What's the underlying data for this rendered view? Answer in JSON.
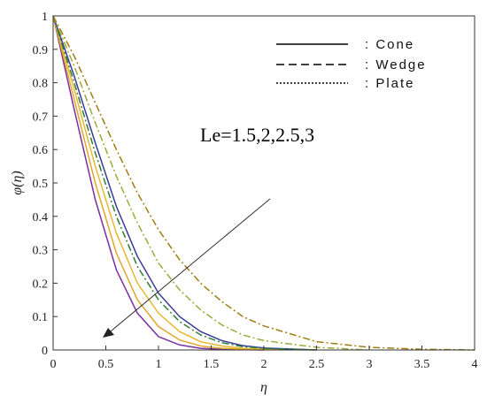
{
  "chart_data": {
    "type": "line",
    "xlabel": "η",
    "ylabel": "φ(η)",
    "xlim": [
      0,
      4
    ],
    "ylim": [
      0,
      1
    ],
    "x_ticks": [
      "0",
      "0.5",
      "1",
      "1.5",
      "2",
      "2.5",
      "3",
      "3.5",
      "4"
    ],
    "y_ticks": [
      "0",
      "0.1",
      "0.2",
      "0.3",
      "0.4",
      "0.5",
      "0.6",
      "0.7",
      "0.8",
      "0.9",
      "1"
    ],
    "grid": false,
    "legend_position": "top-right",
    "legend": [
      {
        "label": ": Cone",
        "style": "solid"
      },
      {
        "label": ": Wedge",
        "style": "dashed"
      },
      {
        "label": ": Plate",
        "style": "dotted"
      }
    ],
    "annotation": {
      "text": "Le=1.5,2,2.5,3"
    },
    "series": [
      {
        "style": "solid",
        "color": "#7b2f9e",
        "x": [
          0,
          0.2,
          0.4,
          0.6,
          0.8,
          1.0,
          1.2,
          1.4,
          1.6,
          2.0
        ],
        "y": [
          1,
          0.72,
          0.45,
          0.24,
          0.11,
          0.04,
          0.015,
          0.005,
          0.002,
          0
        ]
      },
      {
        "style": "solid",
        "color": "#e0a82a",
        "x": [
          0,
          0.2,
          0.4,
          0.6,
          0.8,
          1.0,
          1.2,
          1.4,
          1.6,
          2.0
        ],
        "y": [
          1,
          0.75,
          0.5,
          0.29,
          0.15,
          0.07,
          0.03,
          0.012,
          0.005,
          0
        ]
      },
      {
        "style": "solid",
        "color": "#e8b830",
        "x": [
          0,
          0.2,
          0.4,
          0.6,
          0.8,
          1.0,
          1.2,
          1.4,
          1.6,
          1.8,
          2.0,
          2.5
        ],
        "y": [
          1,
          0.78,
          0.55,
          0.35,
          0.2,
          0.11,
          0.055,
          0.025,
          0.012,
          0.005,
          0.002,
          0
        ]
      },
      {
        "style": "solid",
        "color": "#3a3a9a",
        "x": [
          0,
          0.2,
          0.4,
          0.6,
          0.8,
          1.0,
          1.2,
          1.4,
          1.6,
          1.8,
          2.0,
          2.5
        ],
        "y": [
          1,
          0.82,
          0.62,
          0.43,
          0.28,
          0.17,
          0.1,
          0.055,
          0.028,
          0.013,
          0.006,
          0
        ]
      },
      {
        "style": "dashdot",
        "color": "#2e7d32",
        "x": [
          0,
          0.2,
          0.4,
          0.6,
          0.8,
          1.0,
          1.2,
          1.4,
          1.6,
          1.8,
          2.0,
          2.5
        ],
        "y": [
          1,
          0.8,
          0.59,
          0.4,
          0.25,
          0.15,
          0.085,
          0.045,
          0.022,
          0.01,
          0.005,
          0
        ]
      },
      {
        "style": "dashdot",
        "color": "#9aab3a",
        "x": [
          0,
          0.2,
          0.4,
          0.6,
          0.8,
          1.0,
          1.2,
          1.4,
          1.6,
          1.8,
          2.0,
          2.5,
          3.0
        ],
        "y": [
          1,
          0.85,
          0.68,
          0.52,
          0.38,
          0.26,
          0.18,
          0.12,
          0.075,
          0.045,
          0.028,
          0.008,
          0
        ]
      },
      {
        "style": "dashdot",
        "color": "#a07d10",
        "x": [
          0,
          0.2,
          0.4,
          0.6,
          0.8,
          1.0,
          1.2,
          1.4,
          1.6,
          1.8,
          2.0,
          2.5,
          3.0,
          3.5,
          4.0
        ],
        "y": [
          1,
          0.88,
          0.74,
          0.6,
          0.47,
          0.36,
          0.27,
          0.2,
          0.145,
          0.1,
          0.072,
          0.025,
          0.008,
          0.002,
          0
        ]
      }
    ]
  }
}
